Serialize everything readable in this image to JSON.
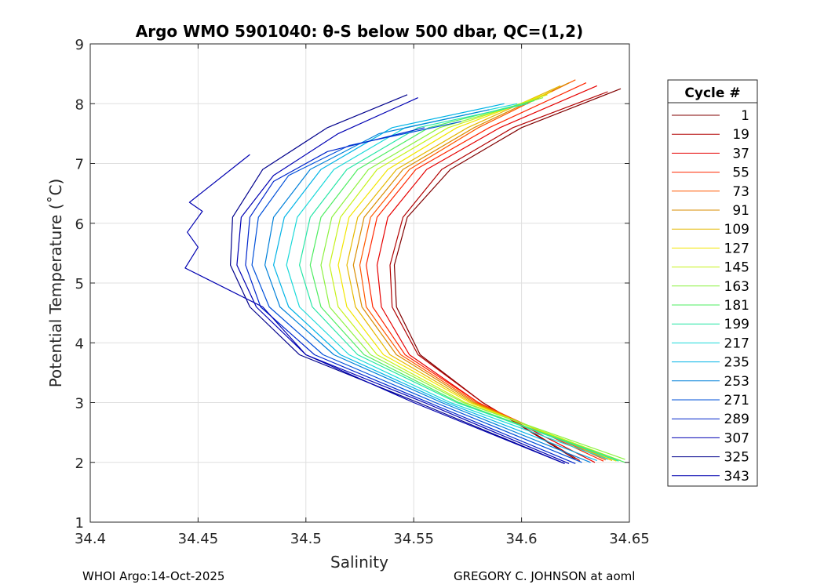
{
  "chart_data": {
    "type": "line",
    "title": "Argo WMO 5901040: θ-S below 500 dbar,  QC=(1,2)",
    "xlabel": "Salinity",
    "ylabel": "Potential Temperature (˚C)",
    "xlim": [
      34.4,
      34.65
    ],
    "ylim": [
      1,
      9
    ],
    "x_ticks": [
      34.4,
      34.45,
      34.5,
      34.55,
      34.6,
      34.65
    ],
    "x_tick_labels": [
      "34.4",
      "34.45",
      "34.5",
      "34.55",
      "34.6",
      "34.65"
    ],
    "y_ticks": [
      1,
      2,
      3,
      4,
      5,
      6,
      7,
      8,
      9
    ],
    "y_tick_labels": [
      "1",
      "2",
      "3",
      "4",
      "5",
      "6",
      "7",
      "8",
      "9"
    ],
    "grid": true,
    "legend": {
      "title": "Cycle #",
      "placement": "outside-right",
      "entries": [
        {
          "label": "1",
          "color": "#800000"
        },
        {
          "label": "19",
          "color": "#b20000"
        },
        {
          "label": "37",
          "color": "#e60000"
        },
        {
          "label": "55",
          "color": "#ff2600"
        },
        {
          "label": "73",
          "color": "#ff5900"
        },
        {
          "label": "91",
          "color": "#d98c00"
        },
        {
          "label": "109",
          "color": "#e6b800"
        },
        {
          "label": "127",
          "color": "#f2e600"
        },
        {
          "label": "145",
          "color": "#c6f21a"
        },
        {
          "label": "163",
          "color": "#8cf240"
        },
        {
          "label": "181",
          "color": "#4ded60"
        },
        {
          "label": "199",
          "color": "#26e6a6"
        },
        {
          "label": "217",
          "color": "#1ad9d9"
        },
        {
          "label": "235",
          "color": "#00b3e6"
        },
        {
          "label": "253",
          "color": "#0080d9"
        },
        {
          "label": "271",
          "color": "#0050d9"
        },
        {
          "label": "289",
          "color": "#0026cc"
        },
        {
          "label": "307",
          "color": "#0000b3"
        },
        {
          "label": "325",
          "color": "#00008c"
        },
        {
          "label": "343",
          "color": "#0000b0"
        }
      ]
    },
    "series": [
      {
        "name": "Cycle 1",
        "color": "#800000",
        "x": [
          34.646,
          34.6,
          34.567,
          34.547,
          34.541,
          34.542,
          34.553,
          34.582,
          34.625
        ],
        "y": [
          8.25,
          7.6,
          6.9,
          6.1,
          5.3,
          4.6,
          3.8,
          3.0,
          2.05
        ]
      },
      {
        "name": "Cycle 19",
        "color": "#b20000",
        "x": [
          34.64,
          34.596,
          34.563,
          34.545,
          34.539,
          34.54,
          34.552,
          34.582,
          34.627
        ],
        "y": [
          8.2,
          7.6,
          6.9,
          6.1,
          5.3,
          4.6,
          3.8,
          3.0,
          2.03
        ]
      },
      {
        "name": "Cycle 37",
        "color": "#e60000",
        "x": [
          34.635,
          34.59,
          34.556,
          34.538,
          34.533,
          34.535,
          34.548,
          34.58,
          34.634
        ],
        "y": [
          8.3,
          7.6,
          6.9,
          6.1,
          5.3,
          4.6,
          3.8,
          3.0,
          2.0
        ]
      },
      {
        "name": "Cycle 55",
        "color": "#ff2600",
        "x": [
          34.63,
          34.585,
          34.551,
          34.533,
          34.528,
          34.531,
          34.546,
          34.58,
          34.638
        ],
        "y": [
          8.35,
          7.6,
          6.9,
          6.1,
          5.3,
          4.6,
          3.8,
          3.0,
          2.02
        ]
      },
      {
        "name": "Cycle 73",
        "color": "#ff5900",
        "x": [
          34.625,
          34.58,
          34.548,
          34.53,
          34.525,
          34.528,
          34.544,
          34.579,
          34.639
        ],
        "y": [
          8.4,
          7.6,
          6.9,
          6.1,
          5.3,
          4.6,
          3.8,
          3.0,
          2.04
        ]
      },
      {
        "name": "Cycle 91",
        "color": "#d98c00",
        "x": [
          34.622,
          34.578,
          34.545,
          34.527,
          34.522,
          34.526,
          34.542,
          34.578,
          34.64
        ],
        "y": [
          8.35,
          7.6,
          6.9,
          6.1,
          5.3,
          4.6,
          3.8,
          3.0,
          2.05
        ]
      },
      {
        "name": "Cycle 109",
        "color": "#e6b800",
        "x": [
          34.618,
          34.575,
          34.542,
          34.524,
          34.519,
          34.523,
          34.539,
          34.577,
          34.642
        ],
        "y": [
          8.3,
          7.6,
          6.9,
          6.1,
          5.3,
          4.6,
          3.8,
          3.0,
          2.03
        ]
      },
      {
        "name": "Cycle 127",
        "color": "#f2e600",
        "x": [
          34.614,
          34.57,
          34.538,
          34.52,
          34.515,
          34.519,
          34.536,
          34.576,
          34.644
        ],
        "y": [
          8.2,
          7.6,
          6.9,
          6.1,
          5.3,
          4.6,
          3.8,
          3.0,
          2.02
        ]
      },
      {
        "name": "Cycle 145",
        "color": "#c6f21a",
        "x": [
          34.612,
          34.566,
          34.533,
          34.516,
          34.511,
          34.515,
          34.533,
          34.574,
          34.646
        ],
        "y": [
          8.15,
          7.6,
          6.9,
          6.1,
          5.3,
          4.6,
          3.8,
          3.0,
          2.03
        ]
      },
      {
        "name": "Cycle 163",
        "color": "#8cf240",
        "x": [
          34.61,
          34.562,
          34.529,
          34.512,
          34.507,
          34.511,
          34.53,
          34.573,
          34.648
        ],
        "y": [
          8.1,
          7.6,
          6.9,
          6.1,
          5.3,
          4.6,
          3.8,
          3.0,
          2.05
        ]
      },
      {
        "name": "Cycle 181",
        "color": "#4ded60",
        "x": [
          34.606,
          34.557,
          34.524,
          34.507,
          34.502,
          34.507,
          34.527,
          34.571,
          34.648
        ],
        "y": [
          8.05,
          7.6,
          6.9,
          6.1,
          5.3,
          4.6,
          3.8,
          3.0,
          2.0
        ]
      },
      {
        "name": "Cycle 199",
        "color": "#26e6a6",
        "x": [
          34.603,
          34.552,
          34.519,
          34.502,
          34.497,
          34.503,
          34.524,
          34.57,
          34.645
        ],
        "y": [
          8.0,
          7.6,
          6.9,
          6.1,
          5.3,
          4.6,
          3.8,
          3.0,
          2.02
        ]
      },
      {
        "name": "Cycle 217",
        "color": "#1ad9d9",
        "x": [
          34.598,
          34.546,
          34.513,
          34.496,
          34.491,
          34.497,
          34.52,
          34.567,
          34.64
        ],
        "y": [
          8.0,
          7.6,
          6.9,
          6.1,
          5.3,
          4.6,
          3.8,
          3.0,
          2.05
        ]
      },
      {
        "name": "Cycle 235",
        "color": "#00b3e6",
        "x": [
          34.592,
          34.54,
          34.507,
          34.49,
          34.485,
          34.492,
          34.516,
          34.565,
          34.635
        ],
        "y": [
          8.0,
          7.6,
          6.9,
          6.1,
          5.3,
          4.6,
          3.8,
          3.0,
          2.03
        ]
      },
      {
        "name": "Cycle 253",
        "color": "#0080d9",
        "x": [
          34.585,
          34.534,
          34.502,
          34.485,
          34.481,
          34.488,
          34.513,
          34.563,
          34.632
        ],
        "y": [
          7.9,
          7.5,
          6.9,
          6.1,
          5.3,
          4.6,
          3.8,
          3.0,
          2.0
        ]
      },
      {
        "name": "Cycle 271",
        "color": "#0050d9",
        "x": [
          34.572,
          34.52,
          34.492,
          34.478,
          34.475,
          34.483,
          34.508,
          34.56,
          34.628
        ],
        "y": [
          7.7,
          7.3,
          6.8,
          6.1,
          5.3,
          4.6,
          3.8,
          3.0,
          2.0
        ]
      },
      {
        "name": "Cycle 289",
        "color": "#0026cc",
        "x": [
          34.555,
          34.51,
          34.485,
          34.474,
          34.472,
          34.479,
          34.504,
          34.557,
          34.625
        ],
        "y": [
          7.6,
          7.2,
          6.7,
          6.1,
          5.3,
          4.6,
          3.8,
          3.0,
          1.98
        ]
      },
      {
        "name": "Cycle 307",
        "color": "#0000b3",
        "x": [
          34.552,
          34.515,
          34.485,
          34.47,
          34.468,
          34.477,
          34.5,
          34.555,
          34.622
        ],
        "y": [
          8.1,
          7.5,
          6.8,
          6.1,
          5.3,
          4.6,
          3.8,
          3.0,
          1.98
        ]
      },
      {
        "name": "Cycle 325",
        "color": "#00008c",
        "x": [
          34.547,
          34.51,
          34.48,
          34.466,
          34.465,
          34.474,
          34.497,
          34.552,
          34.62
        ],
        "y": [
          8.15,
          7.6,
          6.9,
          6.1,
          5.3,
          4.6,
          3.8,
          3.0,
          1.98
        ]
      },
      {
        "name": "Cycle 343",
        "color": "#0000b0",
        "x": [
          34.474,
          34.446,
          34.452,
          34.445,
          34.45,
          34.444,
          34.48,
          34.5,
          34.55,
          34.62
        ],
        "y": [
          7.15,
          6.35,
          6.2,
          5.85,
          5.6,
          5.25,
          4.6,
          3.8,
          3.0,
          1.98
        ]
      }
    ]
  },
  "footer": {
    "left": "WHOI Argo:14-Oct-2025",
    "right": "GREGORY C. JOHNSON at aoml"
  }
}
